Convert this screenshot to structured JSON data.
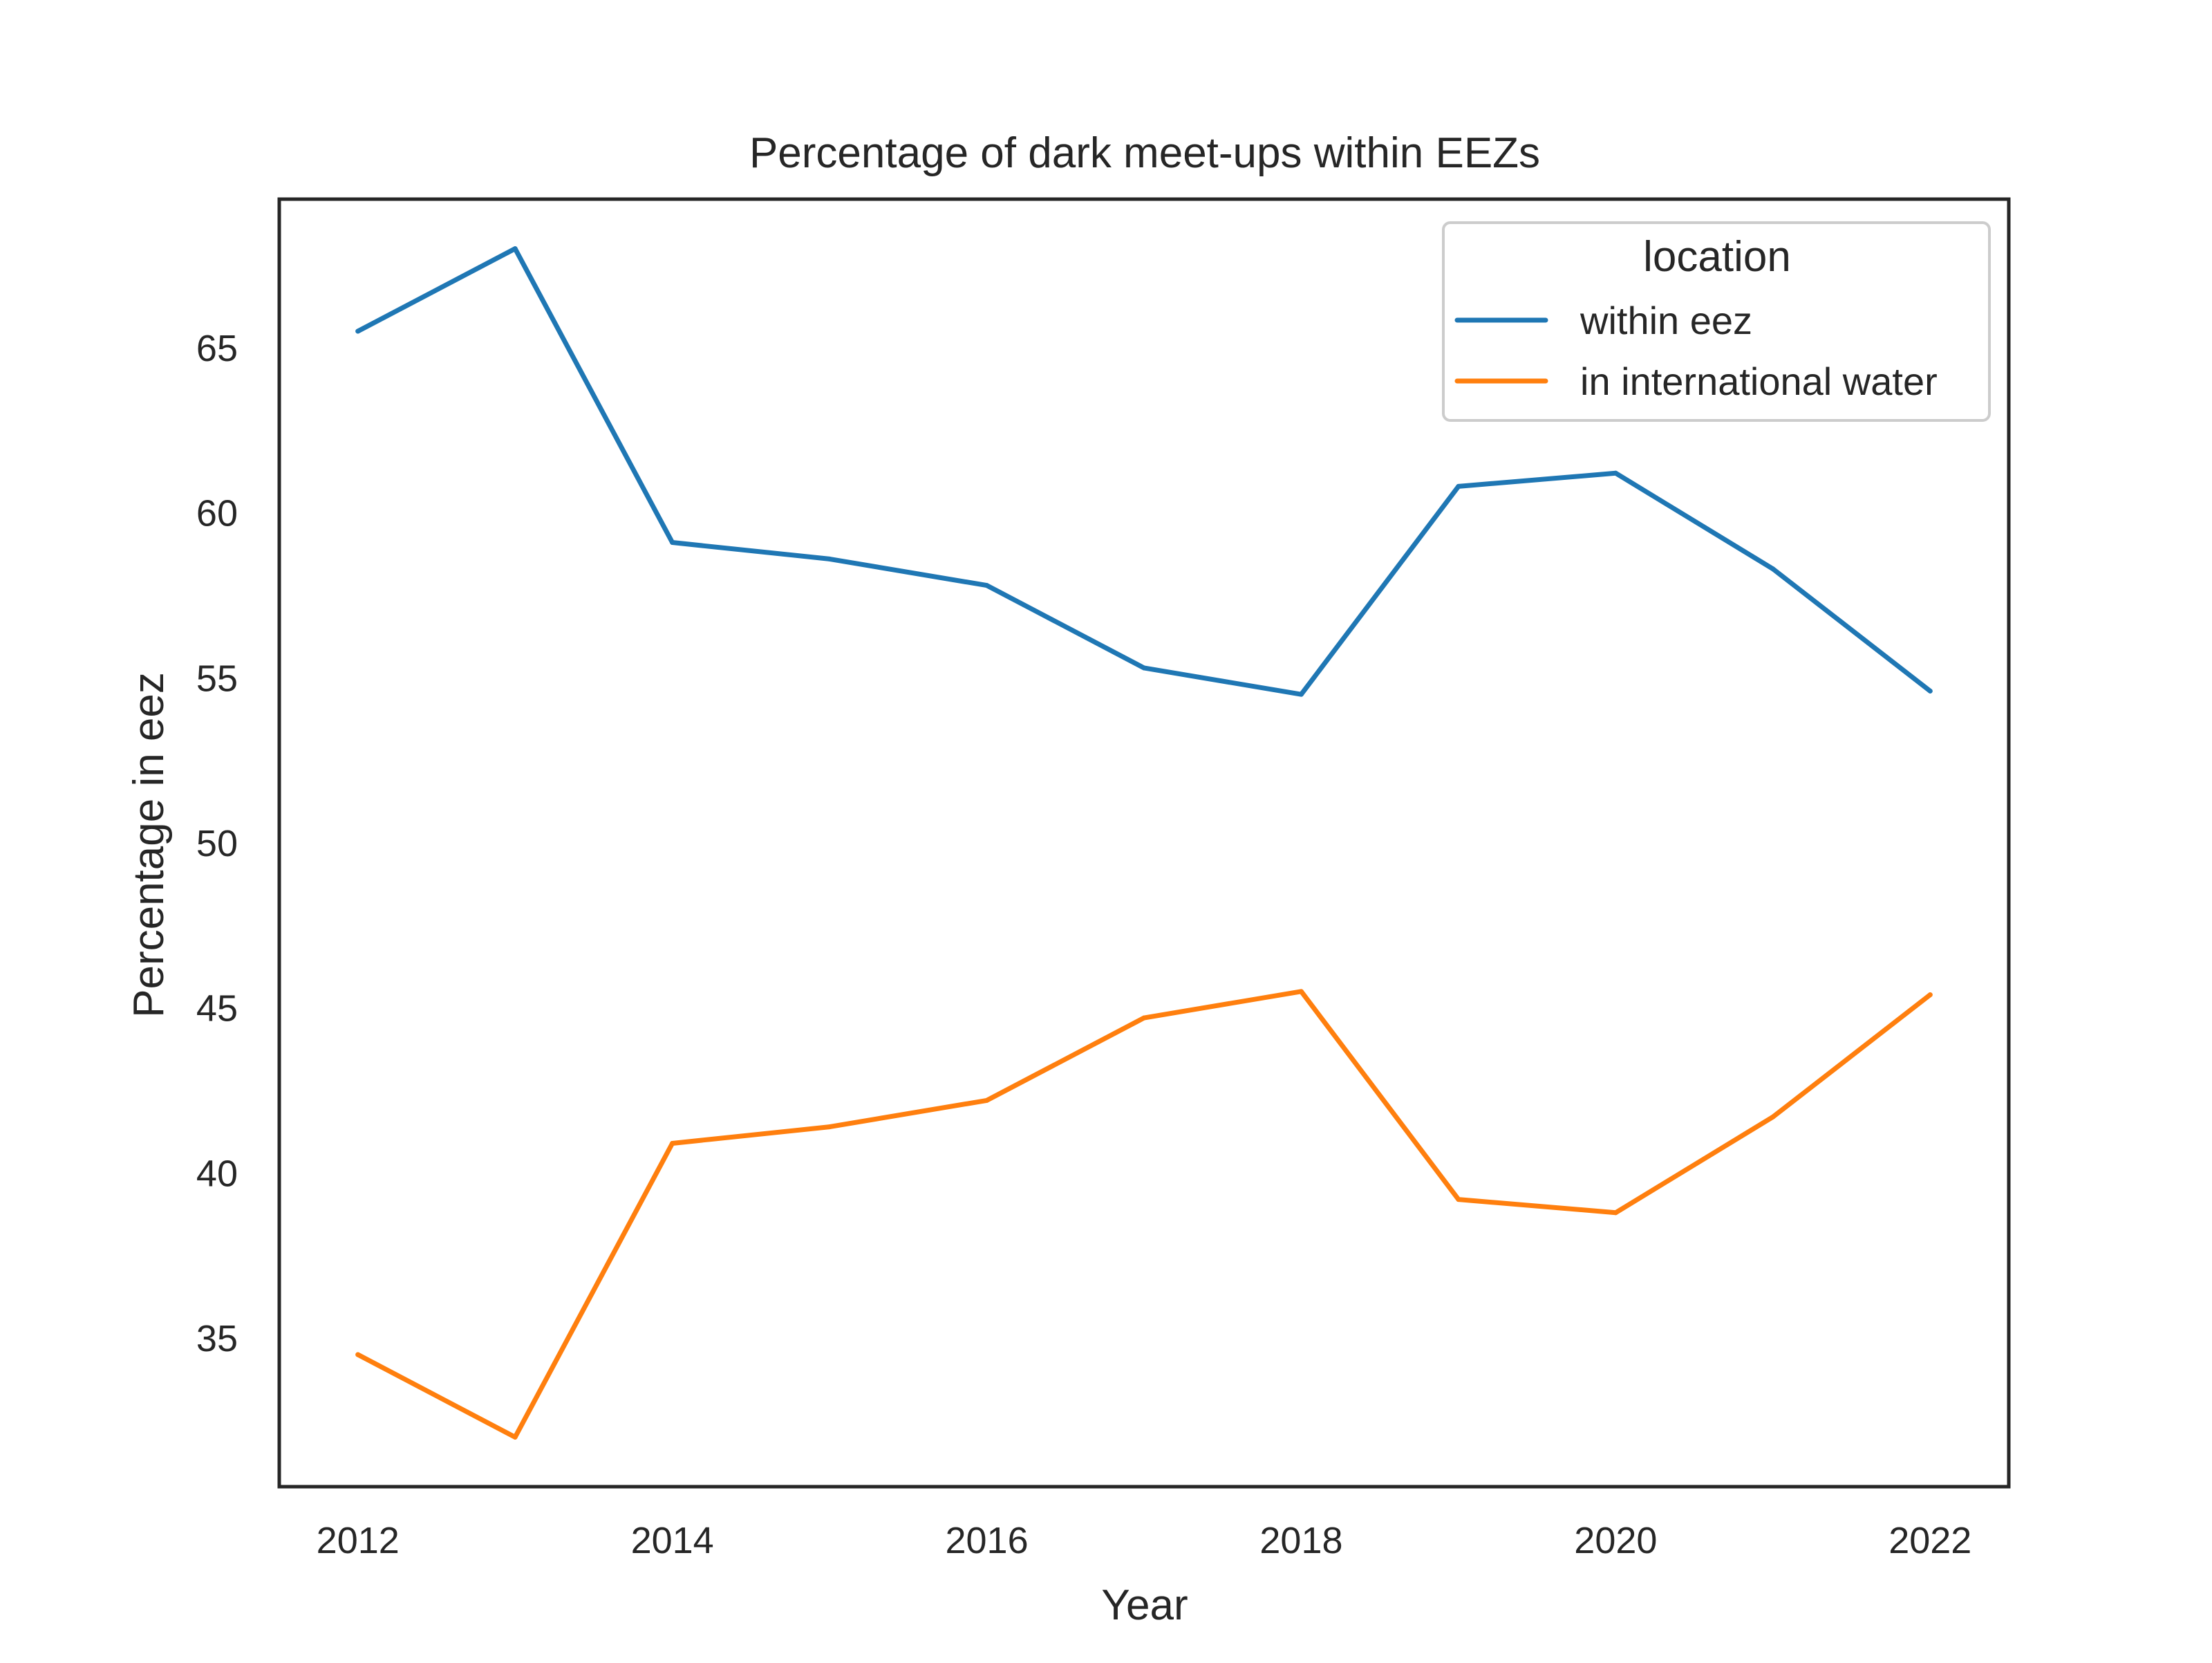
{
  "chart_data": {
    "type": "line",
    "title": "Percentage of dark meet-ups within EEZs",
    "xlabel": "Year",
    "ylabel": "Percentage in eez",
    "x": [
      2012,
      2013,
      2014,
      2015,
      2016,
      2017,
      2018,
      2019,
      2020,
      2021,
      2022
    ],
    "series": [
      {
        "name": "within eez",
        "color": "#1f77b4",
        "values": [
          65.5,
          68.0,
          59.1,
          58.6,
          57.8,
          55.3,
          54.5,
          60.8,
          61.2,
          58.3,
          54.6
        ]
      },
      {
        "name": "in international water",
        "color": "#ff7f0e",
        "values": [
          34.5,
          32.0,
          40.9,
          41.4,
          42.2,
          44.7,
          45.5,
          39.2,
          38.8,
          41.7,
          45.4
        ]
      }
    ],
    "xticks": [
      2012,
      2014,
      2016,
      2018,
      2020,
      2022
    ],
    "yticks": [
      35,
      40,
      45,
      50,
      55,
      60,
      65
    ],
    "xlim": [
      2011.5,
      2022.5
    ],
    "ylim": [
      30.5,
      69.5
    ],
    "grid": false,
    "legend": {
      "title": "location",
      "placement": "top-right"
    }
  }
}
